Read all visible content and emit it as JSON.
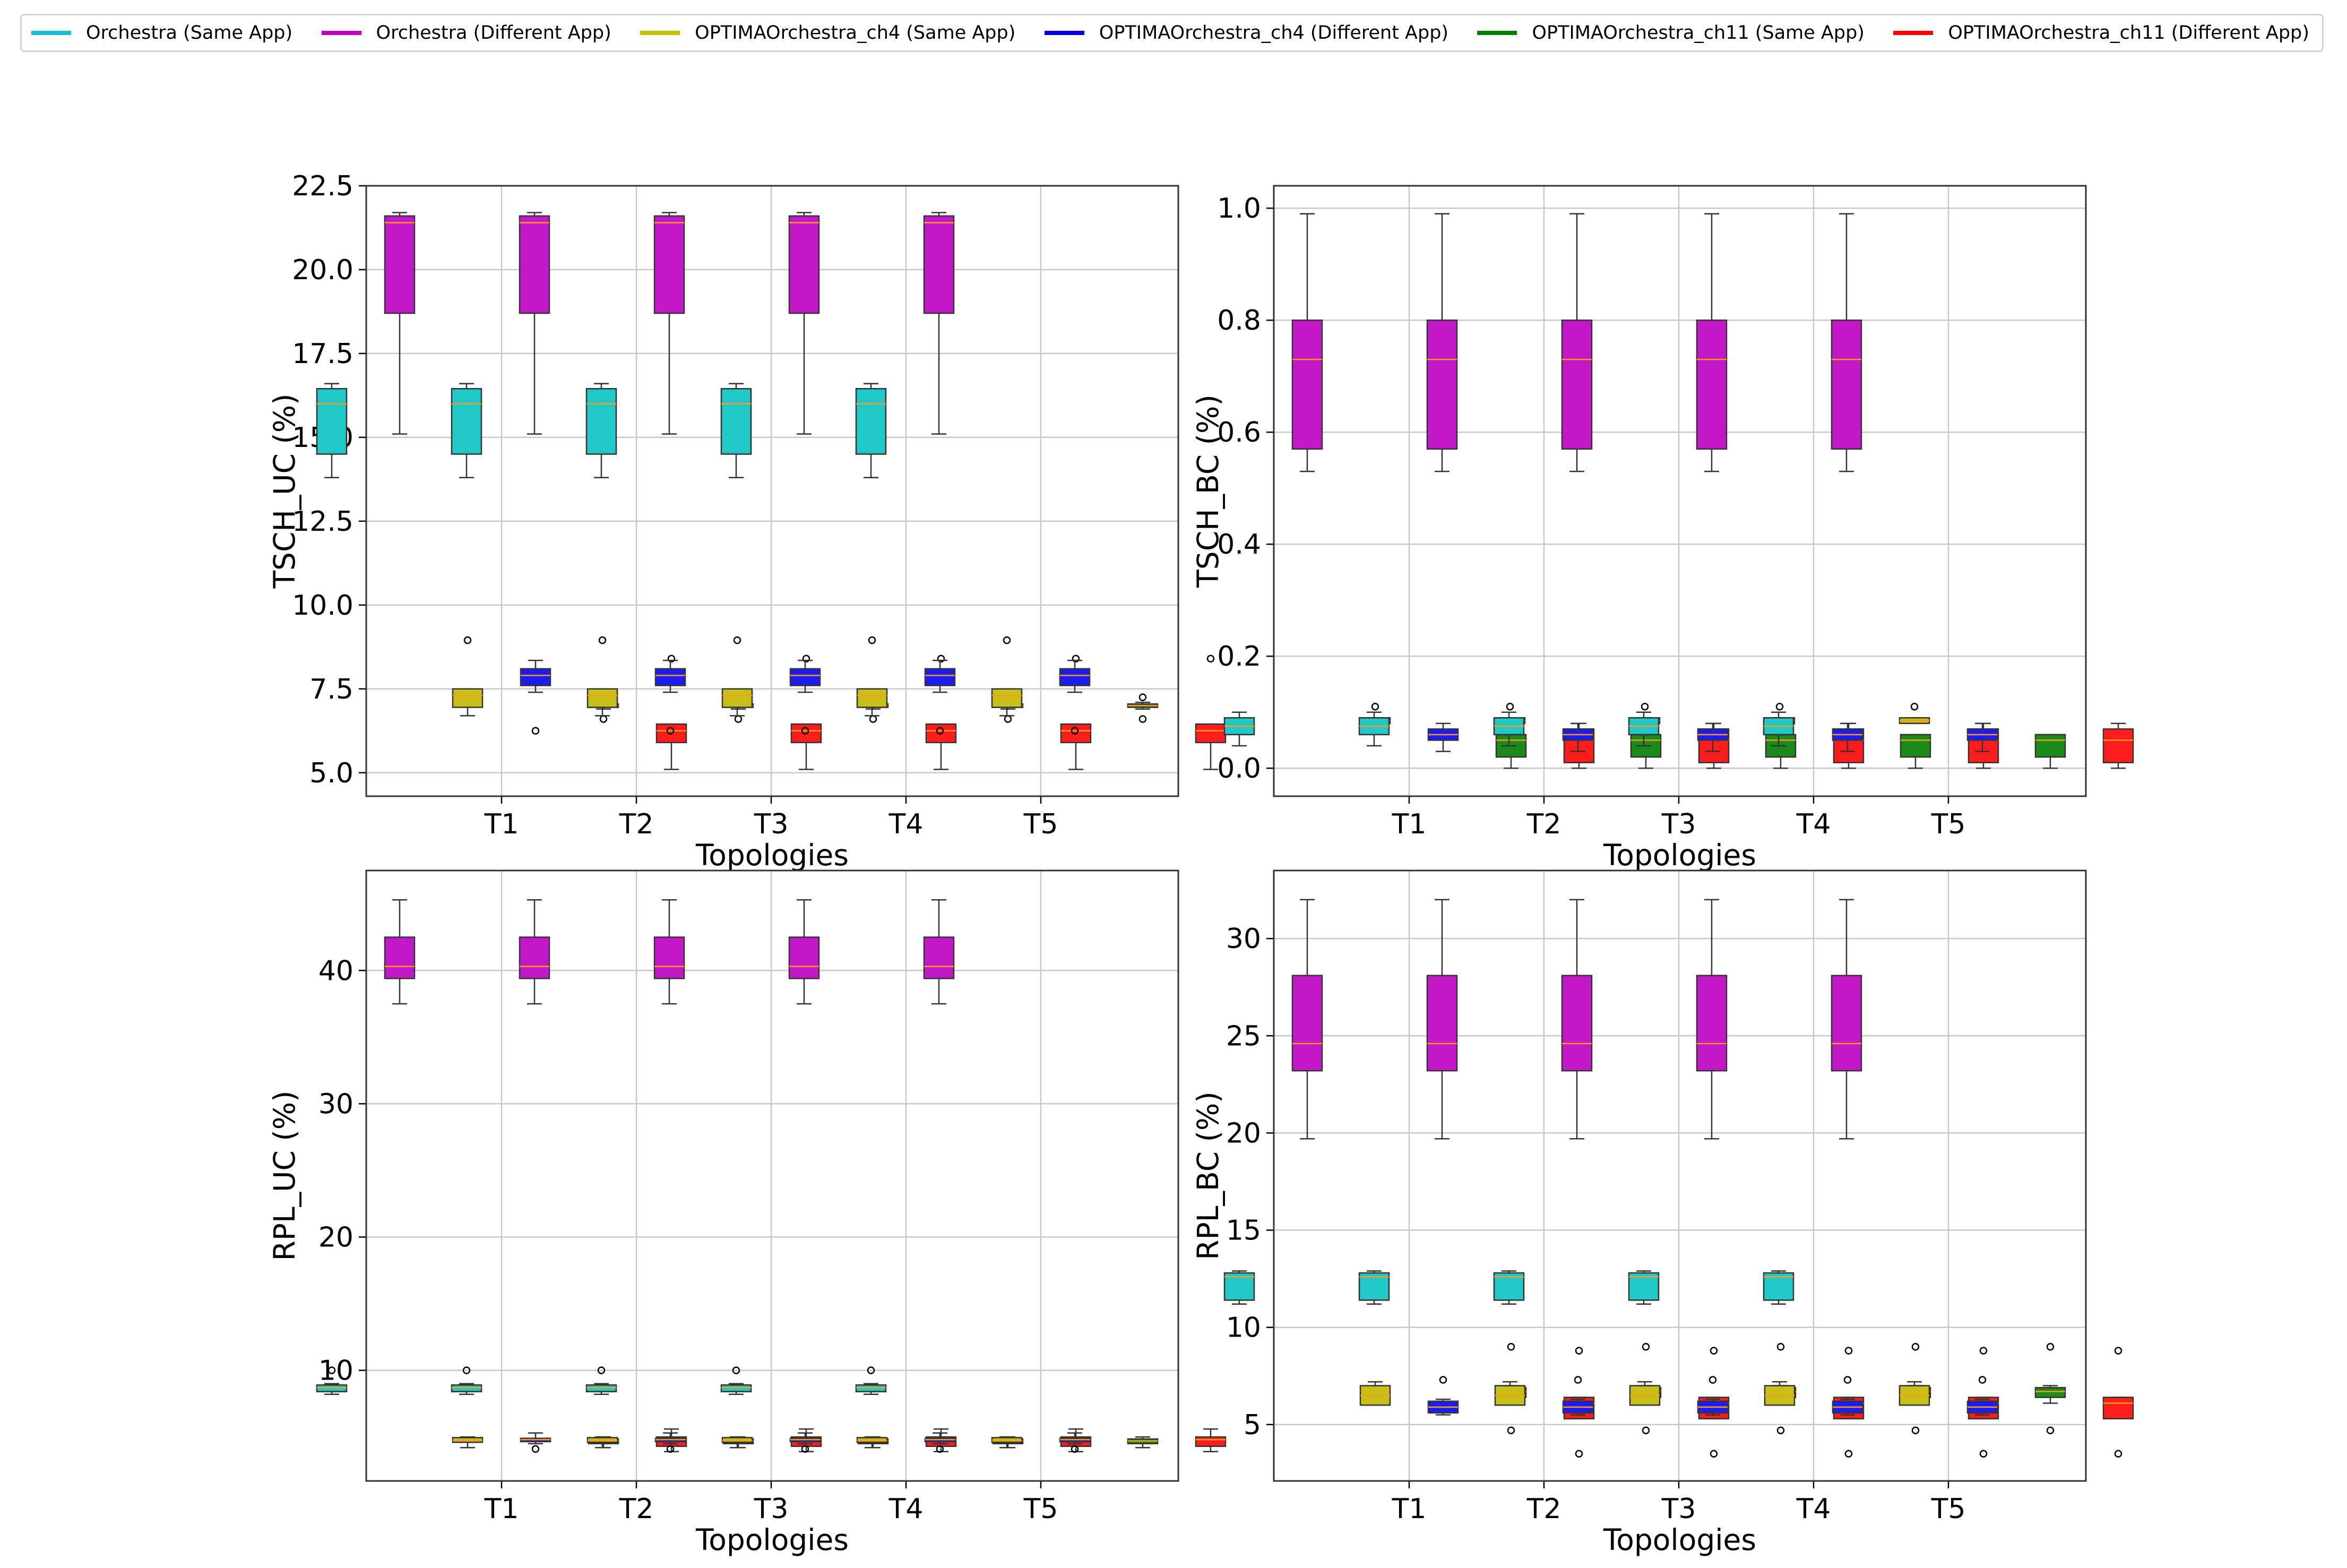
{
  "legend": [
    {
      "label": "Orchestra (Same App)",
      "color": "#17becf"
    },
    {
      "label": "Orchestra (Different App)",
      "color": "#bf00bf"
    },
    {
      "label": "OPTIMAOrchestra_ch4 (Same App)",
      "color": "#c4c000"
    },
    {
      "label": "OPTIMAOrchestra_ch4 (Different App)",
      "color": "#0000e0"
    },
    {
      "label": "OPTIMAOrchestra_ch11 (Same App)",
      "color": "#008000"
    },
    {
      "label": "OPTIMAOrchestra_ch11 (Different App)",
      "color": "#ff0000"
    }
  ],
  "chart_data": [
    {
      "type": "box",
      "title": "",
      "xlabel": "Topologies",
      "ylabel": "TSCH_UC (%)",
      "categories": [
        "T1",
        "T2",
        "T3",
        "T4",
        "T5"
      ],
      "ylim": [
        4.3,
        22.5
      ],
      "yticks": [
        "5.0",
        "7.5",
        "10.0",
        "12.5",
        "15.0",
        "17.5",
        "20.0",
        "22.5"
      ],
      "series": [
        {
          "name": "Orchestra (Same App)",
          "whislo": 13.8,
          "q1": 14.5,
          "med": 16.0,
          "q3": 16.45,
          "whishi": 16.6,
          "fliers": []
        },
        {
          "name": "Orchestra (Different App)",
          "whislo": 15.1,
          "q1": 18.7,
          "med": 21.4,
          "q3": 21.6,
          "whishi": 21.7,
          "fliers": []
        },
        {
          "name": "OPTIMAOrchestra_ch4 (Same App)",
          "whislo": 6.7,
          "q1": 6.95,
          "med": 7.3,
          "q3": 7.5,
          "whishi": 7.5,
          "fliers": [
            8.95
          ]
        },
        {
          "name": "OPTIMAOrchestra_ch4 (Different App)",
          "whislo": 7.4,
          "q1": 7.6,
          "med": 7.9,
          "q3": 8.1,
          "whishi": 8.35,
          "fliers": [
            6.25
          ]
        },
        {
          "name": "OPTIMAOrchestra_ch11 (Same App)",
          "whislo": 6.9,
          "q1": 6.95,
          "med": 7.0,
          "q3": 7.05,
          "whishi": 7.1,
          "fliers": [
            7.25,
            6.6
          ]
        },
        {
          "name": "OPTIMAOrchestra_ch11 (Different App)",
          "whislo": 5.1,
          "q1": 5.9,
          "med": 6.25,
          "q3": 6.45,
          "whishi": 6.45,
          "fliers": [
            8.4
          ]
        }
      ]
    },
    {
      "type": "box",
      "title": "",
      "xlabel": "Topologies",
      "ylabel": "TSCH_BC (%)",
      "categories": [
        "T1",
        "T2",
        "T3",
        "T4",
        "T5"
      ],
      "ylim": [
        -0.05,
        1.04
      ],
      "yticks": [
        "0.0",
        "0.2",
        "0.4",
        "0.6",
        "0.8",
        "1.0"
      ],
      "series": [
        {
          "name": "Orchestra (Same App)",
          "whislo": 0.04,
          "q1": 0.06,
          "med": 0.075,
          "q3": 0.09,
          "whishi": 0.1,
          "fliers": []
        },
        {
          "name": "Orchestra (Different App)",
          "whislo": 0.53,
          "q1": 0.57,
          "med": 0.73,
          "q3": 0.8,
          "whishi": 0.99,
          "fliers": []
        },
        {
          "name": "OPTIMAOrchestra_ch4 (Same App)",
          "whislo": 0.08,
          "q1": 0.08,
          "med": 0.085,
          "q3": 0.09,
          "whishi": 0.09,
          "fliers": [
            0.11
          ]
        },
        {
          "name": "OPTIMAOrchestra_ch4 (Different App)",
          "whislo": 0.03,
          "q1": 0.05,
          "med": 0.06,
          "q3": 0.07,
          "whishi": 0.08,
          "fliers": []
        },
        {
          "name": "OPTIMAOrchestra_ch11 (Same App)",
          "whislo": 0.0,
          "q1": 0.02,
          "med": 0.05,
          "q3": 0.06,
          "whishi": 0.06,
          "fliers": []
        },
        {
          "name": "OPTIMAOrchestra_ch11 (Different App)",
          "whislo": 0.0,
          "q1": 0.01,
          "med": 0.05,
          "q3": 0.07,
          "whishi": 0.08,
          "fliers": []
        }
      ]
    },
    {
      "type": "box",
      "title": "",
      "xlabel": "Topologies",
      "ylabel": "RPL_UC (%)",
      "categories": [
        "T1",
        "T2",
        "T3",
        "T4",
        "T5"
      ],
      "ylim": [
        1.7,
        47.5
      ],
      "yticks": [
        "10",
        "20",
        "30",
        "40"
      ],
      "series": [
        {
          "name": "Orchestra (Same App)",
          "whislo": 8.2,
          "q1": 8.4,
          "med": 8.7,
          "q3": 8.9,
          "whishi": 9.0,
          "fliers": [
            10.0
          ]
        },
        {
          "name": "Orchestra (Different App)",
          "whislo": 37.5,
          "q1": 39.4,
          "med": 40.3,
          "q3": 42.5,
          "whishi": 45.3,
          "fliers": []
        },
        {
          "name": "OPTIMAOrchestra_ch4 (Same App)",
          "whislo": 4.2,
          "q1": 4.6,
          "med": 4.75,
          "q3": 4.95,
          "whishi": 5.0,
          "fliers": []
        },
        {
          "name": "OPTIMAOrchestra_ch4 (Different App)",
          "whislo": 4.5,
          "q1": 4.65,
          "med": 4.8,
          "q3": 4.9,
          "whishi": 5.3,
          "fliers": [
            4.1
          ]
        },
        {
          "name": "OPTIMAOrchestra_ch11 (Same App)",
          "whislo": 4.2,
          "q1": 4.5,
          "med": 4.7,
          "q3": 4.85,
          "whishi": 5.0,
          "fliers": []
        },
        {
          "name": "OPTIMAOrchestra_ch11 (Different App)",
          "whislo": 3.9,
          "q1": 4.3,
          "med": 4.8,
          "q3": 5.0,
          "whishi": 5.6,
          "fliers": []
        }
      ]
    },
    {
      "type": "box",
      "title": "",
      "xlabel": "Topologies",
      "ylabel": "RPL_BC (%)",
      "categories": [
        "T1",
        "T2",
        "T3",
        "T4",
        "T5"
      ],
      "ylim": [
        2.1,
        33.5
      ],
      "yticks": [
        "5",
        "10",
        "15",
        "20",
        "25",
        "30"
      ],
      "series": [
        {
          "name": "Orchestra (Same App)",
          "whislo": 11.2,
          "q1": 11.4,
          "med": 12.6,
          "q3": 12.8,
          "whishi": 12.9,
          "fliers": []
        },
        {
          "name": "Orchestra (Different App)",
          "whislo": 19.7,
          "q1": 23.2,
          "med": 24.6,
          "q3": 28.1,
          "whishi": 32.0,
          "fliers": []
        },
        {
          "name": "OPTIMAOrchestra_ch4 (Same App)",
          "whislo": 6.0,
          "q1": 6.0,
          "med": 6.5,
          "q3": 7.0,
          "whishi": 7.2,
          "fliers": []
        },
        {
          "name": "OPTIMAOrchestra_ch4 (Different App)",
          "whislo": 5.5,
          "q1": 5.6,
          "med": 5.9,
          "q3": 6.2,
          "whishi": 6.3,
          "fliers": [
            7.3
          ]
        },
        {
          "name": "OPTIMAOrchestra_ch11 (Same App)",
          "whislo": 6.1,
          "q1": 6.4,
          "med": 6.7,
          "q3": 6.9,
          "whishi": 7.0,
          "fliers": [
            9.0,
            4.7
          ]
        },
        {
          "name": "OPTIMAOrchestra_ch11 (Different App)",
          "whislo": 5.3,
          "q1": 5.3,
          "med": 6.1,
          "q3": 6.4,
          "whishi": 6.4,
          "fliers": [
            8.8,
            3.5
          ]
        }
      ]
    }
  ]
}
